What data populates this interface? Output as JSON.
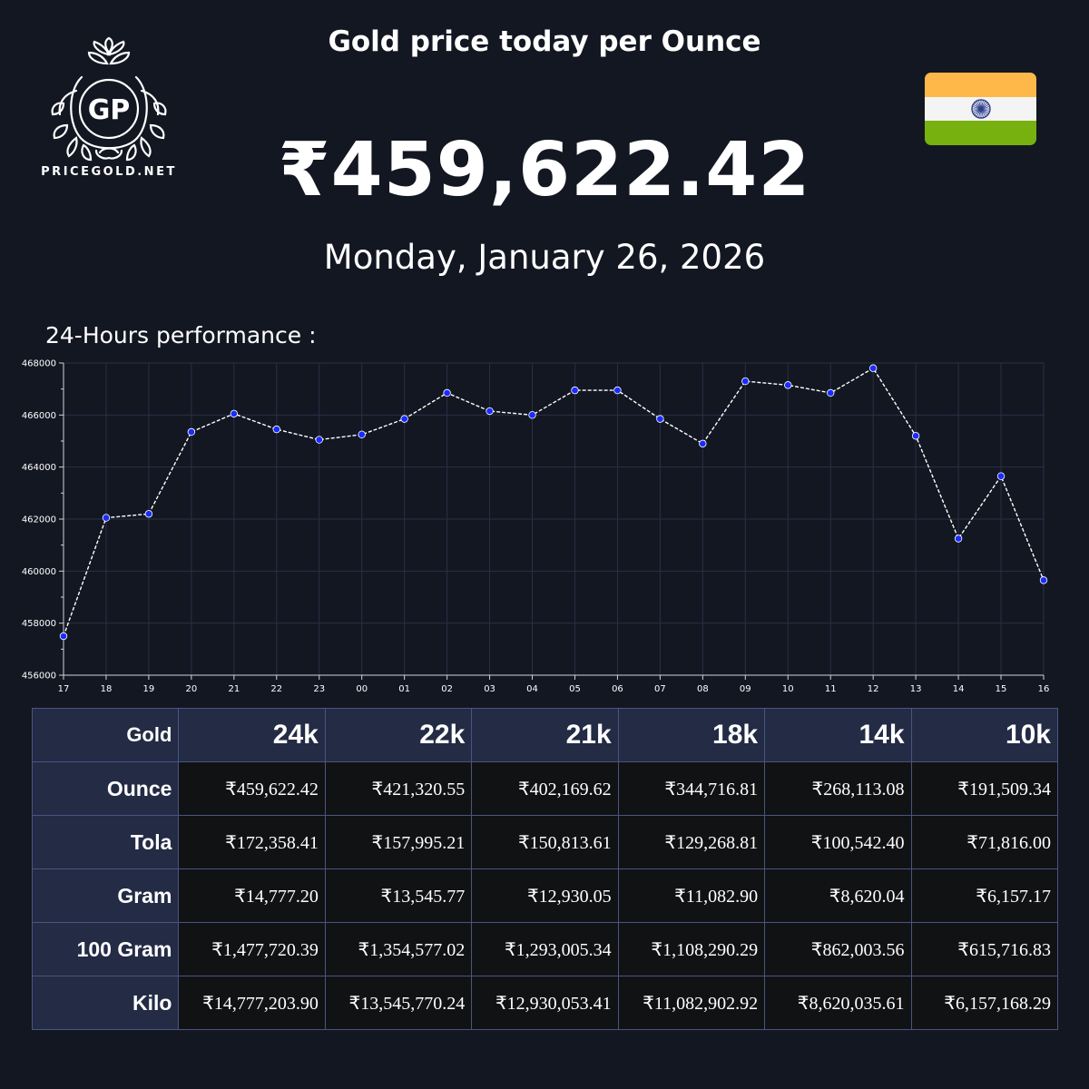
{
  "brand": {
    "logo_initials": "GP",
    "name": "PRICEGOLD.NET"
  },
  "header": {
    "title": "Gold price today per Ounce",
    "price": "₹459,622.42",
    "date": "Monday, January 26, 2026"
  },
  "flag": {
    "country": "India",
    "colors": {
      "saffron": "#FDB849",
      "white": "#F4F4F4",
      "green": "#77B10F",
      "chakra": "#2D3E8C"
    }
  },
  "performance_label": "24-Hours performance :",
  "chart_data": {
    "type": "line",
    "x": [
      "17",
      "18",
      "19",
      "20",
      "21",
      "22",
      "23",
      "00",
      "01",
      "02",
      "03",
      "04",
      "05",
      "06",
      "07",
      "08",
      "09",
      "10",
      "11",
      "12",
      "13",
      "14",
      "15",
      "16"
    ],
    "series": [
      {
        "values": [
          457500,
          462050,
          462200,
          465350,
          466050,
          465450,
          465050,
          465250,
          465850,
          466850,
          466150,
          466000,
          466950,
          466950,
          465850,
          464900,
          467300,
          467150,
          466850,
          467800,
          465200,
          461250,
          463650,
          459650
        ]
      }
    ],
    "ylim": [
      456000,
      468000
    ],
    "yticks": [
      "456000",
      "458000",
      "460000",
      "462000",
      "464000",
      "466000",
      "468000"
    ],
    "grid": true,
    "colors": {
      "line": "#FFFFFF",
      "marker": "#1A2BFF",
      "grid": "#2A3045"
    }
  },
  "table": {
    "corner": "Gold",
    "columns": [
      "24k",
      "22k",
      "21k",
      "18k",
      "14k",
      "10k"
    ],
    "rows": [
      {
        "label": "Ounce",
        "values": [
          "₹459,622.42",
          "₹421,320.55",
          "₹402,169.62",
          "₹344,716.81",
          "₹268,113.08",
          "₹191,509.34"
        ]
      },
      {
        "label": "Tola",
        "values": [
          "₹172,358.41",
          "₹157,995.21",
          "₹150,813.61",
          "₹129,268.81",
          "₹100,542.40",
          "₹71,816.00"
        ]
      },
      {
        "label": "Gram",
        "values": [
          "₹14,777.20",
          "₹13,545.77",
          "₹12,930.05",
          "₹11,082.90",
          "₹8,620.04",
          "₹6,157.17"
        ]
      },
      {
        "label": "100 Gram",
        "values": [
          "₹1,477,720.39",
          "₹1,354,577.02",
          "₹1,293,005.34",
          "₹1,108,290.29",
          "₹862,003.56",
          "₹615,716.83"
        ]
      },
      {
        "label": "Kilo",
        "values": [
          "₹14,777,203.90",
          "₹13,545,770.24",
          "₹12,930,053.41",
          "₹11,082,902.92",
          "₹8,620,035.61",
          "₹6,157,168.29"
        ]
      }
    ]
  }
}
